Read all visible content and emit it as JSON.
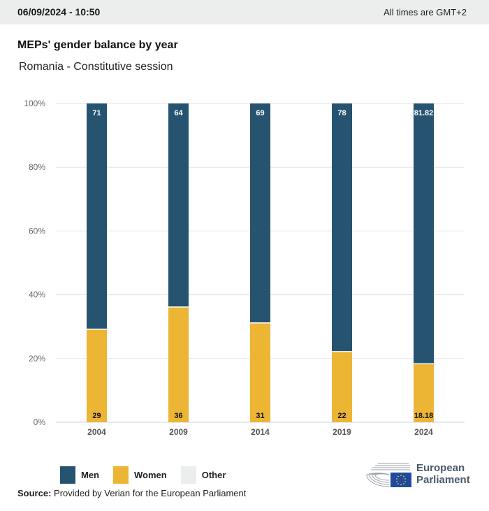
{
  "header": {
    "datetime": "06/09/2024 - 10:50",
    "timezone_note": "All times are GMT+2"
  },
  "title": "MEPs' gender balance by year",
  "subtitle": "Romania - Constitutive session",
  "colors": {
    "men": "#26536f",
    "women": "#ecb534",
    "other": "#ecedef",
    "grid": "#e3e3e3",
    "axis": "#ccd3e0"
  },
  "chart_data": {
    "type": "bar",
    "stacked": true,
    "title": "MEPs' gender balance by year",
    "subtitle": "Romania - Constitutive session",
    "xlabel": "",
    "ylabel": "",
    "ylim": [
      0,
      100
    ],
    "y_ticks": [
      "0%",
      "20%",
      "40%",
      "60%",
      "80%",
      "100%"
    ],
    "y_tick_values": [
      0,
      20,
      40,
      60,
      80,
      100
    ],
    "grid": true,
    "categories": [
      "2004",
      "2009",
      "2014",
      "2019",
      "2024"
    ],
    "series": [
      {
        "name": "Women",
        "values": [
          29,
          36,
          31,
          22,
          18.18
        ],
        "labels": [
          "29",
          "36",
          "31",
          "22",
          "18.18"
        ]
      },
      {
        "name": "Men",
        "values": [
          71,
          64,
          69,
          78,
          81.82
        ],
        "labels": [
          "71",
          "64",
          "69",
          "78",
          "81.82"
        ]
      },
      {
        "name": "Other",
        "values": [
          0,
          0,
          0,
          0,
          0
        ]
      }
    ],
    "legend": [
      "Men",
      "Women",
      "Other"
    ],
    "legend_position": "bottom-left"
  },
  "legend": [
    {
      "label": "Men",
      "key": "men"
    },
    {
      "label": "Women",
      "key": "women"
    },
    {
      "label": "Other",
      "key": "other"
    }
  ],
  "source": {
    "label": "Source:",
    "text": " Provided by Verian for the European Parliament"
  },
  "logo": {
    "line1": "European",
    "line2": "Parliament"
  }
}
